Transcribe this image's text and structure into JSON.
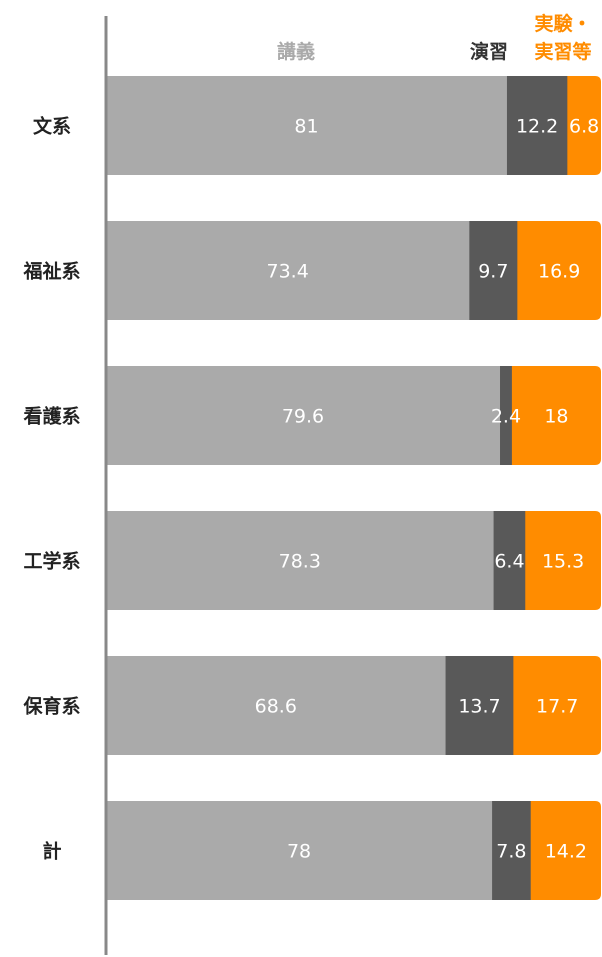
{
  "chart_data": {
    "type": "bar",
    "orientation": "horizontal",
    "stacked": true,
    "normalized_percent": true,
    "categories": [
      "文系",
      "福祉系",
      "看護系",
      "工学系",
      "保育系",
      "計"
    ],
    "series": [
      {
        "name": "講義",
        "color": "#aaaaaa",
        "values": [
          81,
          73.4,
          79.6,
          78.3,
          68.6,
          78
        ]
      },
      {
        "name": "演習",
        "color": "#595959",
        "values": [
          12.2,
          9.7,
          2.4,
          6.4,
          13.7,
          7.8
        ]
      },
      {
        "name": "実験・実習等",
        "color": "#ff8c00",
        "values": [
          6.8,
          16.9,
          18,
          15.3,
          17.7,
          14.2
        ]
      }
    ],
    "legend": {
      "placement": "top",
      "lines": [
        [
          "講義"
        ],
        [
          "演習"
        ],
        [
          "実験・",
          "実習等"
        ]
      ]
    },
    "xlim": [
      0,
      100
    ],
    "grid": false,
    "axis_line_color": "#888888"
  }
}
